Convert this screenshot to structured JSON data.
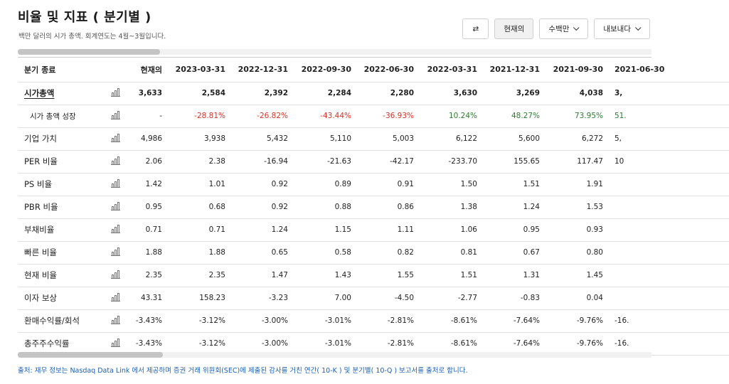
{
  "page": {
    "title": "비율 및 지표 ( 분기별 )",
    "subtitle": "백만 달러의 시가 총액. 회계연도는 4월~3월입니다."
  },
  "toolbar": {
    "swap_icon": "⇄",
    "current_label": "현재의",
    "units_label": "수백만",
    "export_label": "내보내다"
  },
  "table": {
    "header_label": "분기 종료",
    "columns": [
      "현재의",
      "2023-03-31",
      "2022-12-31",
      "2022-09-30",
      "2022-06-30",
      "2022-03-31",
      "2021-12-31",
      "2021-09-30",
      "2021-06-30"
    ],
    "rows": [
      {
        "label": "시가총액",
        "style": "bold",
        "values": [
          "3,633",
          "2,584",
          "2,392",
          "2,284",
          "2,280",
          "3,630",
          "3,269",
          "4,038",
          "3,"
        ]
      },
      {
        "label": "시가 총액 성장",
        "style": "indent",
        "values": [
          "-",
          "-28.81%",
          "-26.82%",
          "-43.44%",
          "-36.93%",
          "10.24%",
          "48.27%",
          "73.95%",
          "51."
        ]
      },
      {
        "label": "기업 가치",
        "style": "",
        "values": [
          "4,986",
          "3,938",
          "5,432",
          "5,110",
          "5,003",
          "6,122",
          "5,600",
          "6,272",
          "5,"
        ]
      },
      {
        "label": "PER 비율",
        "style": "",
        "values": [
          "2.06",
          "2.38",
          "-16.94",
          "-21.63",
          "-42.17",
          "-233.70",
          "155.65",
          "117.47",
          "10"
        ]
      },
      {
        "label": "PS 비율",
        "style": "",
        "values": [
          "1.42",
          "1.01",
          "0.92",
          "0.89",
          "0.91",
          "1.50",
          "1.51",
          "1.91",
          ""
        ]
      },
      {
        "label": "PBR 비율",
        "style": "",
        "values": [
          "0.95",
          "0.68",
          "0.92",
          "0.88",
          "0.86",
          "1.38",
          "1.24",
          "1.53",
          ""
        ]
      },
      {
        "label": "부채비율",
        "style": "",
        "values": [
          "0.71",
          "0.71",
          "1.24",
          "1.15",
          "1.11",
          "1.06",
          "0.95",
          "0.93",
          ""
        ]
      },
      {
        "label": "빠른 비율",
        "style": "",
        "values": [
          "1.88",
          "1.88",
          "0.65",
          "0.58",
          "0.82",
          "0.81",
          "0.67",
          "0.80",
          ""
        ]
      },
      {
        "label": "현재 비율",
        "style": "",
        "values": [
          "2.35",
          "2.35",
          "1.47",
          "1.43",
          "1.55",
          "1.51",
          "1.31",
          "1.45",
          ""
        ]
      },
      {
        "label": "이자 보상",
        "style": "",
        "values": [
          "43.31",
          "158.23",
          "-3.23",
          "7.00",
          "-4.50",
          "-2.77",
          "-0.83",
          "0.04",
          ""
        ]
      },
      {
        "label": "환매수익률/회석",
        "style": "",
        "values": [
          "-3.43%",
          "-3.12%",
          "-3.00%",
          "-3.01%",
          "-2.81%",
          "-8.61%",
          "-7.64%",
          "-9.76%",
          "-16."
        ]
      },
      {
        "label": "총주주수익률",
        "style": "",
        "values": [
          "-3.43%",
          "-3.12%",
          "-3.00%",
          "-3.01%",
          "-2.81%",
          "-8.61%",
          "-7.64%",
          "-9.76%",
          "-16."
        ]
      }
    ]
  },
  "colors": {
    "negative": "#d93025",
    "positive": "#2e7d32",
    "link": "#1a5fb4"
  },
  "footer": "출처: 재무 정보는 Nasdaq Data Link 에서 제공하며 증권 거래 위원회(SEC)에 제출된 감사를 거친 연간( 10-K ) 및 분기별( 10-Q ) 보고서를 출처로 합니다."
}
